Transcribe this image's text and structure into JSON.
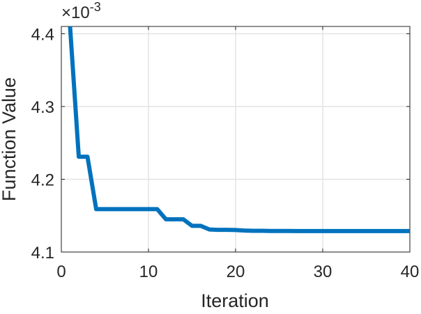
{
  "chart_data": {
    "type": "line",
    "xlabel": "Iteration",
    "ylabel": "Function Value",
    "y_exponent": "×10^-3",
    "y_exponent_base": "×10",
    "y_exponent_power": "-3",
    "xlim": [
      0,
      40
    ],
    "ylim": [
      4.1,
      4.41
    ],
    "x_ticks": [
      0,
      10,
      20,
      30,
      40
    ],
    "x_tick_labels": [
      "0",
      "10",
      "20",
      "30",
      "40"
    ],
    "y_ticks": [
      4.1,
      4.2,
      4.3,
      4.4
    ],
    "y_tick_labels": [
      "4.1",
      "4.2",
      "4.3",
      "4.4"
    ],
    "grid": true,
    "colors": {
      "line": "#0072bd",
      "grid": "#e3e3e3",
      "axis": "#262626"
    },
    "series": [
      {
        "x": [
          1,
          2,
          3,
          4,
          5,
          6,
          7,
          8,
          9,
          10,
          11,
          12,
          13,
          14,
          15,
          16,
          17,
          18,
          19,
          20,
          21,
          22,
          23,
          24,
          25,
          26,
          27,
          28,
          29,
          30,
          31,
          32,
          33,
          34,
          35,
          36,
          37,
          38,
          39,
          40
        ],
        "values": [
          4.41,
          4.231,
          4.231,
          4.159,
          4.159,
          4.159,
          4.159,
          4.159,
          4.159,
          4.159,
          4.159,
          4.145,
          4.145,
          4.145,
          4.136,
          4.136,
          4.131,
          4.1305,
          4.1305,
          4.1303,
          4.1295,
          4.1292,
          4.1292,
          4.129,
          4.129,
          4.129,
          4.1288,
          4.1288,
          4.1288,
          4.1288,
          4.1288,
          4.1288,
          4.1288,
          4.1288,
          4.1288,
          4.1288,
          4.1288,
          4.1288,
          4.1288,
          4.1288
        ]
      }
    ]
  }
}
